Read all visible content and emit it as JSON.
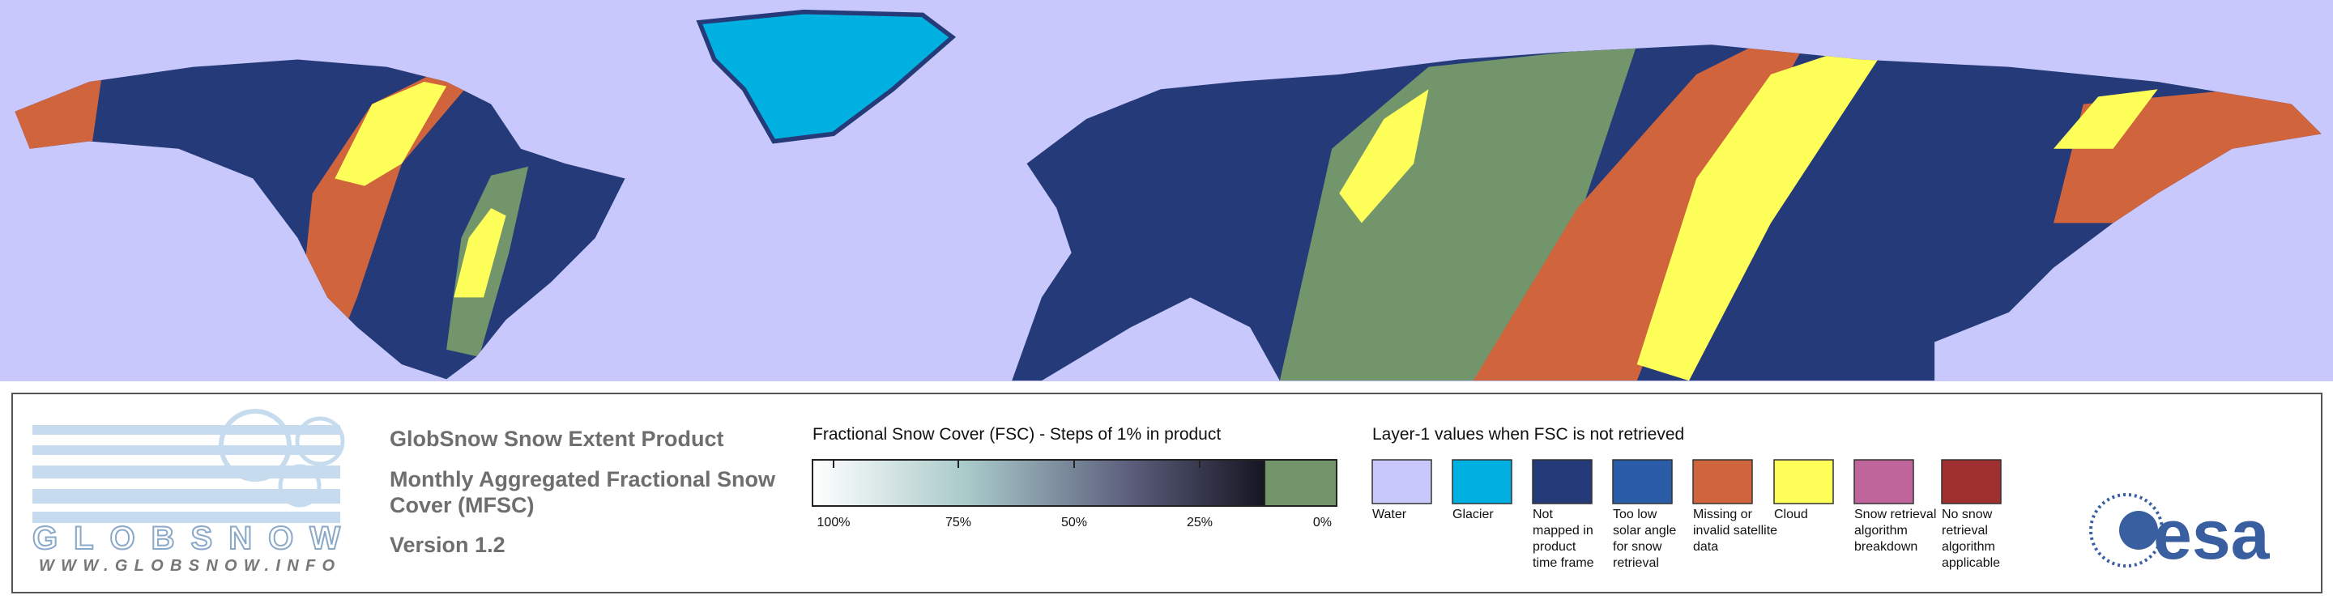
{
  "header": {
    "title": "GlobSnow Snow Extent Product",
    "subtitle_lines": [
      "Monthly Aggregated Fractional Snow",
      "Cover (MFSC)"
    ],
    "version": "Version 1.2"
  },
  "logo": {
    "name": "GLOBSNOW",
    "url": "WWW.GLOBSNOW.INFO",
    "partner": "esa"
  },
  "fsc_legend": {
    "title": "Fractional Snow Cover (FSC) - Steps of 1% in product",
    "labels": [
      "100%",
      "75%",
      "50%",
      "25%",
      "0%"
    ]
  },
  "layer1_legend": {
    "title": "Layer-1 values when FSC is not retrieved",
    "items": [
      {
        "lines": [
          "Water"
        ],
        "color": "#c8c8fc"
      },
      {
        "lines": [
          "Glacier"
        ],
        "color": "#00b0e0"
      },
      {
        "lines": [
          "Not",
          "mapped in",
          "product",
          "time frame"
        ],
        "color": "#253a78"
      },
      {
        "lines": [
          "Too low",
          "solar angle",
          "for snow",
          "retrieval"
        ],
        "color": "#2a5ca8"
      },
      {
        "lines": [
          "Missing or",
          "invalid satellite",
          "data"
        ],
        "color": "#d0643c"
      },
      {
        "lines": [
          "Cloud"
        ],
        "color": "#ffff5a"
      },
      {
        "lines": [
          "Snow retrieval",
          "algorithm",
          "breakdown"
        ],
        "color": "#c0649c"
      },
      {
        "lines": [
          "No snow",
          "retrieval",
          "algorithm",
          "applicable"
        ],
        "color": "#a03030"
      }
    ]
  }
}
